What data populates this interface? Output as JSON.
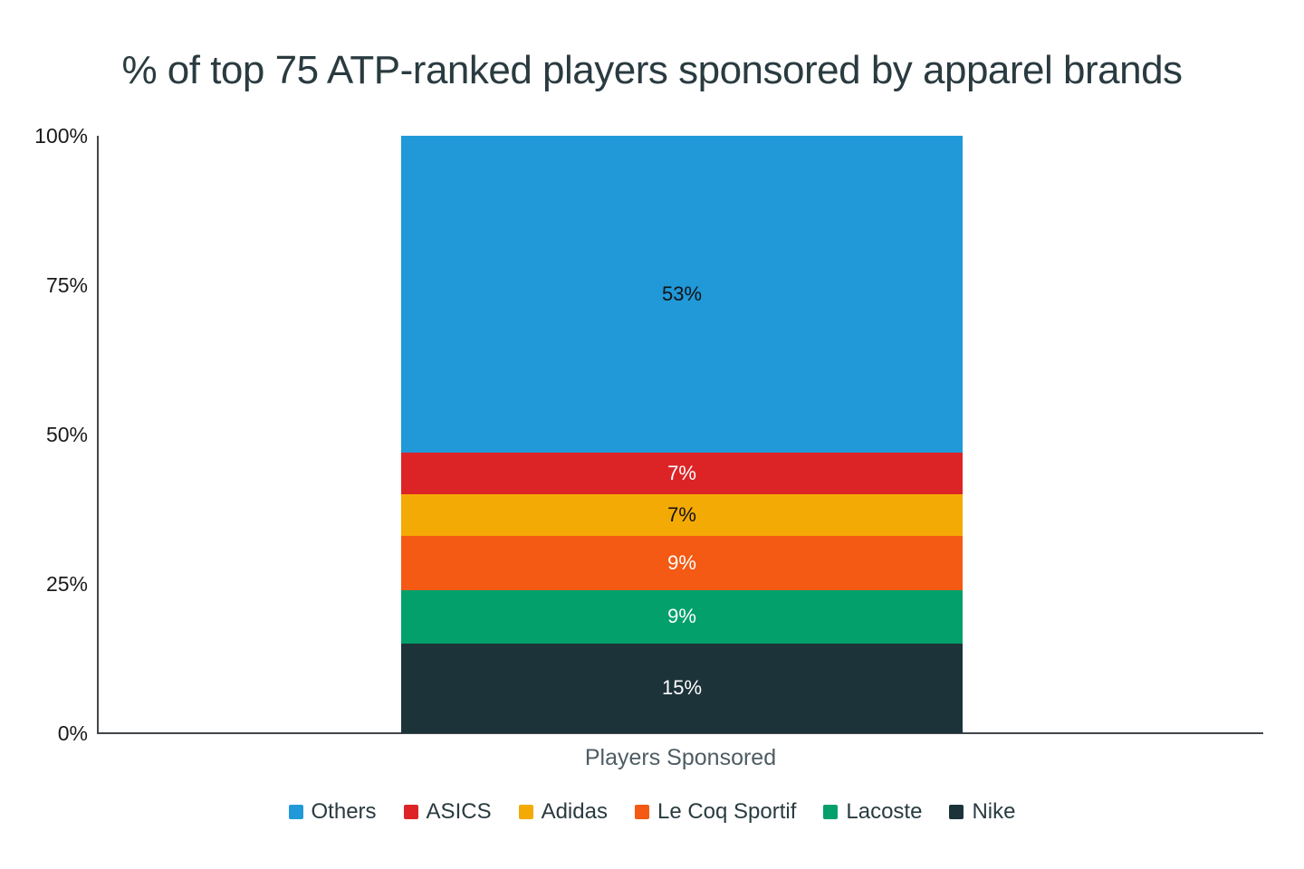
{
  "title": "% of top 75 ATP-ranked players sponsored by apparel brands",
  "chart_data": {
    "type": "bar",
    "stacked": true,
    "title": "% of top 75 ATP-ranked players sponsored by apparel brands",
    "xlabel": "Players Sponsored",
    "ylabel": "",
    "ylim": [
      0,
      100
    ],
    "yticks": [
      100,
      75,
      50,
      25,
      0
    ],
    "ytick_labels": [
      "100%",
      "75%",
      "50%",
      "25%",
      "0%"
    ],
    "grid": false,
    "legend_position": "bottom",
    "categories": [
      "Players Sponsored"
    ],
    "stack_order_top_to_bottom": [
      "Others",
      "ASICS",
      "Adidas",
      "Le Coq Sportif",
      "Lacoste",
      "Nike"
    ],
    "series": [
      {
        "name": "Others",
        "values": [
          53
        ],
        "data_label": "53%",
        "color": "#2199D8",
        "label_color": "#101214"
      },
      {
        "name": "ASICS",
        "values": [
          7
        ],
        "data_label": "7%",
        "color": "#DC2427",
        "label_color": "#FFFFFF"
      },
      {
        "name": "Adidas",
        "values": [
          7
        ],
        "data_label": "7%",
        "color": "#F4AA05",
        "label_color": "#101214"
      },
      {
        "name": "Le Coq Sportif",
        "values": [
          9
        ],
        "data_label": "9%",
        "color": "#F45A13",
        "label_color": "#FFFFFF"
      },
      {
        "name": "Lacoste",
        "values": [
          9
        ],
        "data_label": "9%",
        "color": "#04A06B",
        "label_color": "#FFFFFF"
      },
      {
        "name": "Nike",
        "values": [
          15
        ],
        "data_label": "15%",
        "color": "#1D333A",
        "label_color": "#FFFFFF"
      }
    ]
  }
}
